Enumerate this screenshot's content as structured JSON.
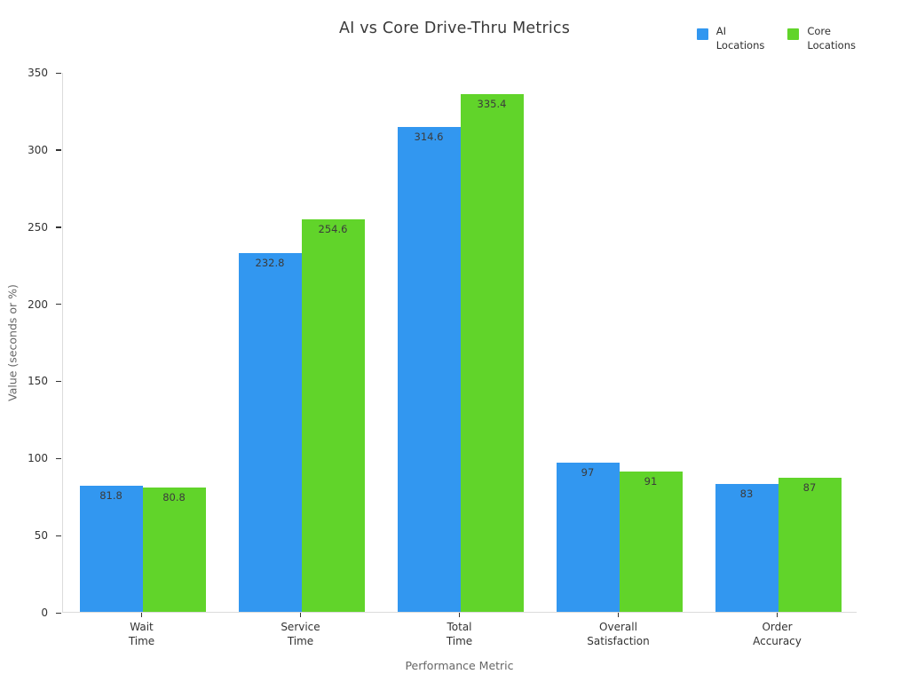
{
  "title": "AI vs Core Drive-Thru Metrics",
  "legend": {
    "entries": [
      {
        "label": "AI\nLocations",
        "color": "#3297f0"
      },
      {
        "label": "Core\nLocations",
        "color": "#61d42a"
      }
    ]
  },
  "axes": {
    "xlabel": "Performance Metric",
    "ylabel": "Value (seconds or %)"
  },
  "chart_data": {
    "type": "bar",
    "categories": [
      "Wait\nTime",
      "Service\nTime",
      "Total\nTime",
      "Overall\nSatisfaction",
      "Order\nAccuracy"
    ],
    "series": [
      {
        "name": "AI Locations",
        "color": "#3297f0",
        "values": [
          81.8,
          232.8,
          314.6,
          97,
          83
        ]
      },
      {
        "name": "Core Locations",
        "color": "#61d42a",
        "values": [
          80.8,
          254.6,
          335.4,
          91,
          87
        ]
      }
    ],
    "title": "AI vs Core Drive-Thru Metrics",
    "xlabel": "Performance Metric",
    "ylabel": "Value (seconds or %)",
    "ylim": [
      0,
      350
    ],
    "yticks": [
      0,
      50,
      100,
      150,
      200,
      250,
      300,
      350
    ],
    "grid": false,
    "bar_value_labels": true,
    "legend_position": "top-right"
  }
}
